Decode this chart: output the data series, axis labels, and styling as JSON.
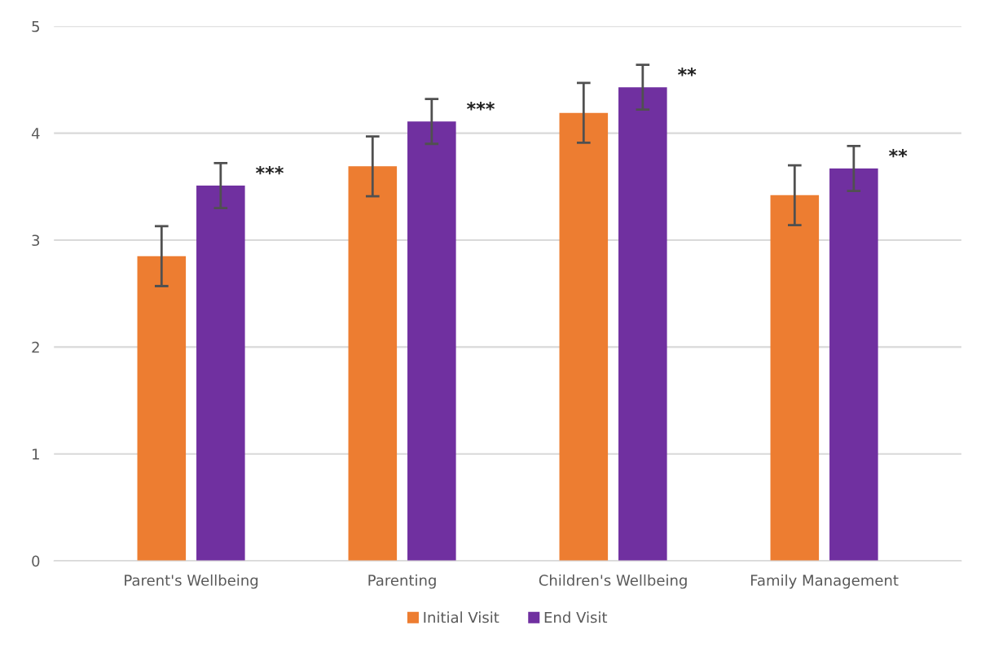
{
  "chart_data": {
    "type": "bar",
    "categories": [
      "Parent's Wellbeing",
      "Parenting",
      "Children's Wellbeing",
      "Family Management"
    ],
    "series": [
      {
        "name": "Initial Visit",
        "color": "#ed7d31",
        "values": [
          2.85,
          3.69,
          4.19,
          3.42
        ],
        "errors": [
          0.28,
          0.28,
          0.28,
          0.28
        ]
      },
      {
        "name": "End Visit",
        "color": "#7030a0",
        "values": [
          3.51,
          4.11,
          4.43,
          3.67
        ],
        "errors": [
          0.21,
          0.21,
          0.21,
          0.21
        ]
      }
    ],
    "ylim": [
      0,
      5
    ],
    "yticks": [
      0,
      1,
      2,
      3,
      4,
      5
    ],
    "grid": "y",
    "legend": "bottom",
    "annotations": [
      "***",
      "***",
      "**",
      "**"
    ]
  }
}
